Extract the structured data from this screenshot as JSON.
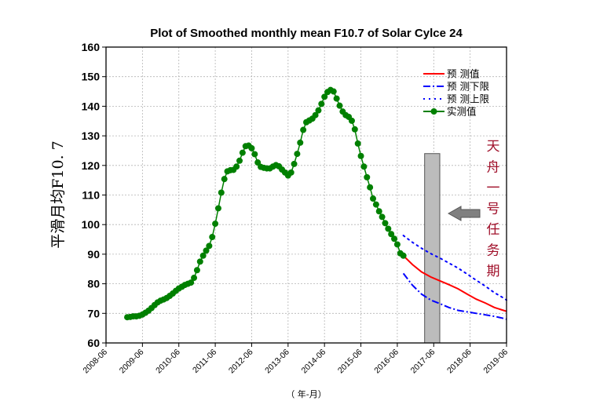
{
  "chart_data": {
    "type": "line",
    "title": "Plot of Smoothed monthly mean F10.7 of Solar Cylce 24",
    "xlabel": "（ 年-月）",
    "ylabel": "平滑月均F10. 7",
    "ylim": [
      60,
      160
    ],
    "yticks": [
      60,
      70,
      80,
      90,
      100,
      110,
      120,
      130,
      140,
      150,
      160
    ],
    "xlim": [
      "2008-06",
      "2019-06"
    ],
    "xticks": [
      "2008-06",
      "2009-06",
      "2010-06",
      "2011-06",
      "2012-06",
      "2013-06",
      "2014-06",
      "2015-06",
      "2016-06",
      "2017-06",
      "2018-06",
      "2019-06"
    ],
    "grid": true,
    "legend_position": "top-right",
    "series": [
      {
        "name": "预 测值",
        "style": "solid",
        "color": "#ff0000",
        "x": [
          "2016-08",
          "2016-11",
          "2017-02",
          "2017-05",
          "2017-08",
          "2017-11",
          "2018-02",
          "2018-05",
          "2018-08",
          "2018-11",
          "2019-02",
          "2019-05",
          "2019-06"
        ],
        "y": [
          89.5,
          86.5,
          84.0,
          82.3,
          81.0,
          79.7,
          78.3,
          76.5,
          74.8,
          73.5,
          72.0,
          71.0,
          70.7
        ]
      },
      {
        "name": "预 测下限",
        "style": "dashdot",
        "color": "#0000ff",
        "x": [
          "2016-08",
          "2016-11",
          "2017-02",
          "2017-05",
          "2017-08",
          "2017-11",
          "2018-02",
          "2018-05",
          "2018-08",
          "2018-11",
          "2019-02",
          "2019-05",
          "2019-06"
        ],
        "y": [
          83.5,
          79.5,
          76.5,
          74.5,
          73.3,
          72.0,
          71.0,
          70.5,
          70.0,
          69.5,
          69.0,
          68.3,
          68.0
        ]
      },
      {
        "name": "预 测上限",
        "style": "dotted",
        "color": "#0000ff",
        "x": [
          "2016-08",
          "2016-11",
          "2017-02",
          "2017-05",
          "2017-08",
          "2017-11",
          "2018-02",
          "2018-05",
          "2018-08",
          "2018-11",
          "2019-02",
          "2019-05",
          "2019-06"
        ],
        "y": [
          96.3,
          94.0,
          92.0,
          90.2,
          88.7,
          87.0,
          85.3,
          83.3,
          81.2,
          79.2,
          77.0,
          75.2,
          74.5
        ]
      },
      {
        "name": "实测值",
        "style": "line-marker",
        "color": "#008000",
        "x": [
          "2009-01",
          "2009-02",
          "2009-03",
          "2009-04",
          "2009-05",
          "2009-06",
          "2009-07",
          "2009-08",
          "2009-09",
          "2009-10",
          "2009-11",
          "2009-12",
          "2010-01",
          "2010-02",
          "2010-03",
          "2010-04",
          "2010-05",
          "2010-06",
          "2010-07",
          "2010-08",
          "2010-09",
          "2010-10",
          "2010-11",
          "2010-12",
          "2011-01",
          "2011-02",
          "2011-03",
          "2011-04",
          "2011-05",
          "2011-06",
          "2011-07",
          "2011-08",
          "2011-09",
          "2011-10",
          "2011-11",
          "2011-12",
          "2012-01",
          "2012-02",
          "2012-03",
          "2012-04",
          "2012-05",
          "2012-06",
          "2012-07",
          "2012-08",
          "2012-09",
          "2012-10",
          "2012-11",
          "2012-12",
          "2013-01",
          "2013-02",
          "2013-03",
          "2013-04",
          "2013-05",
          "2013-06",
          "2013-07",
          "2013-08",
          "2013-09",
          "2013-10",
          "2013-11",
          "2013-12",
          "2014-01",
          "2014-02",
          "2014-03",
          "2014-04",
          "2014-05",
          "2014-06",
          "2014-07",
          "2014-08",
          "2014-09",
          "2014-10",
          "2014-11",
          "2014-12",
          "2015-01",
          "2015-02",
          "2015-03",
          "2015-04",
          "2015-05",
          "2015-06",
          "2015-07",
          "2015-08",
          "2015-09",
          "2015-10",
          "2015-11",
          "2015-12",
          "2016-01",
          "2016-02",
          "2016-03",
          "2016-04",
          "2016-05",
          "2016-06",
          "2016-07",
          "2016-08"
        ],
        "y": [
          68.7,
          68.8,
          69.0,
          69.0,
          69.2,
          69.6,
          70.2,
          70.9,
          71.8,
          72.8,
          73.7,
          74.3,
          74.7,
          75.2,
          75.9,
          76.7,
          77.6,
          78.4,
          79.0,
          79.6,
          80.0,
          80.4,
          82.0,
          84.6,
          87.5,
          89.5,
          91.2,
          92.8,
          95.8,
          100.3,
          105.5,
          110.8,
          115.4,
          118.0,
          118.4,
          118.5,
          119.6,
          121.6,
          124.3,
          126.5,
          126.7,
          125.8,
          123.8,
          121.0,
          119.5,
          119.2,
          119.0,
          119.0,
          119.6,
          120.1,
          119.7,
          118.6,
          117.6,
          116.6,
          117.6,
          120.5,
          123.9,
          127.7,
          132.0,
          134.6,
          135.2,
          135.8,
          137.0,
          138.6,
          140.8,
          143.2,
          144.8,
          145.5,
          145.0,
          142.6,
          140.2,
          138.2,
          137.0,
          136.4,
          135.1,
          132.2,
          127.4,
          123.2,
          119.6,
          116.0,
          112.6,
          108.8,
          106.8,
          104.5,
          102.6,
          100.5,
          98.6,
          96.8,
          95.2,
          93.3,
          90.3,
          89.5
        ]
      }
    ],
    "highlight_band": {
      "label": "天舟一号任务期",
      "x_start": "2017-03",
      "x_end": "2017-08",
      "y_top": 124,
      "color": "#bcbcbc"
    },
    "arrow_color": "#808080",
    "mission_label_chars": [
      "天",
      "舟",
      "一",
      "号",
      "任",
      "务",
      "期"
    ],
    "mission_label_color": "#a0102a"
  }
}
